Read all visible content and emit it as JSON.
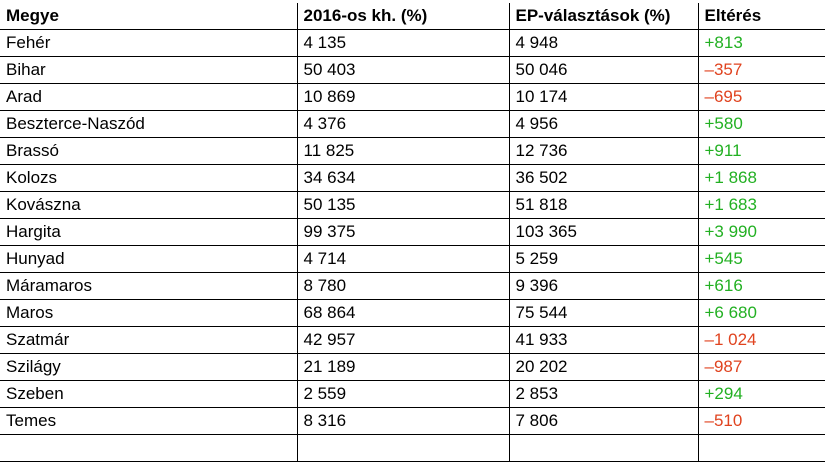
{
  "table": {
    "headers": [
      "Megye",
      "2016-os kh. (%)",
      "EP-választások (%)",
      "Eltérés"
    ],
    "rows": [
      {
        "megye": "Fehér",
        "kh2016": "4 135",
        "ep": "4 948",
        "elteres": "+813",
        "sign": "pos"
      },
      {
        "megye": "Bihar",
        "kh2016": "50 403",
        "ep": "50 046",
        "elteres": "–357",
        "sign": "neg"
      },
      {
        "megye": "Arad",
        "kh2016": "10 869",
        "ep": "10 174",
        "elteres": "–695",
        "sign": "neg"
      },
      {
        "megye": "Beszterce-Naszód",
        "kh2016": "4 376",
        "ep": "4 956",
        "elteres": "+580",
        "sign": "pos"
      },
      {
        "megye": "Brassó",
        "kh2016": "11 825",
        "ep": "12 736",
        "elteres": "+911",
        "sign": "pos"
      },
      {
        "megye": "Kolozs",
        "kh2016": "34 634",
        "ep": "36 502",
        "elteres": "+1 868",
        "sign": "pos"
      },
      {
        "megye": "Kovászna",
        "kh2016": "50 135",
        "ep": "51 818",
        "elteres": "+1 683",
        "sign": "pos"
      },
      {
        "megye": "Hargita",
        "kh2016": "99 375",
        "ep": "103 365",
        "elteres": "+3 990",
        "sign": "pos"
      },
      {
        "megye": "Hunyad",
        "kh2016": "4 714",
        "ep": "5 259",
        "elteres": "+545",
        "sign": "pos"
      },
      {
        "megye": "Máramaros",
        "kh2016": "8 780",
        "ep": "9 396",
        "elteres": "+616",
        "sign": "pos"
      },
      {
        "megye": "Maros",
        "kh2016": "68 864",
        "ep": "75 544",
        "elteres": "+6 680",
        "sign": "pos"
      },
      {
        "megye": "Szatmár",
        "kh2016": "42 957",
        "ep": "41 933",
        "elteres": "–1 024",
        "sign": "neg"
      },
      {
        "megye": "Szilágy",
        "kh2016": "21 189",
        "ep": "20 202",
        "elteres": "–987",
        "sign": "neg"
      },
      {
        "megye": "Szeben",
        "kh2016": "2 559",
        "ep": "2 853",
        "elteres": "+294",
        "sign": "pos"
      },
      {
        "megye": "Temes",
        "kh2016": "8 316",
        "ep": "7 806",
        "elteres": "–510",
        "sign": "neg"
      },
      {
        "megye": "",
        "kh2016": "",
        "ep": "",
        "elteres": "",
        "sign": "pos"
      }
    ]
  },
  "colors": {
    "positive": "#22b022",
    "negative": "#e0431f",
    "border": "#000000"
  }
}
